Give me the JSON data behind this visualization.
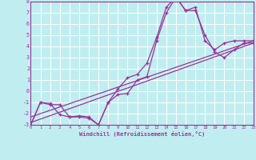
{
  "bg_color": "#c0eef0",
  "grid_color": "#ffffff",
  "line_color": "#993399",
  "xlabel": "Windchill (Refroidissement éolien,°C)",
  "xlim": [
    0,
    23
  ],
  "ylim": [
    -3,
    8
  ],
  "xticks": [
    0,
    1,
    2,
    3,
    4,
    5,
    6,
    7,
    8,
    9,
    10,
    11,
    12,
    13,
    14,
    15,
    16,
    17,
    18,
    19,
    20,
    21,
    22,
    23
  ],
  "yticks": [
    -3,
    -2,
    -1,
    0,
    1,
    2,
    3,
    4,
    5,
    6,
    7,
    8
  ],
  "hours": [
    0,
    1,
    2,
    3,
    4,
    5,
    6,
    7,
    8,
    9,
    10,
    11,
    12,
    13,
    14,
    15,
    16,
    17,
    18,
    19,
    20,
    21,
    22,
    23
  ],
  "line_a": [
    -3.0,
    -1.0,
    -1.1,
    -2.1,
    -2.3,
    -2.3,
    -2.4,
    -3.0,
    -1.0,
    -0.3,
    -0.2,
    1.0,
    1.3,
    4.5,
    7.0,
    8.4,
    7.2,
    7.2,
    5.0,
    3.5,
    3.0,
    3.7,
    4.3,
    4.3
  ],
  "line_b": [
    -3.0,
    -1.0,
    -1.2,
    -1.2,
    -2.3,
    -2.2,
    -2.3,
    -3.0,
    -1.0,
    0.2,
    1.2,
    1.5,
    2.5,
    4.8,
    7.5,
    8.4,
    7.2,
    7.5,
    4.5,
    3.7,
    4.3,
    4.5,
    4.5,
    4.5
  ],
  "trend1_x": [
    0,
    23
  ],
  "trend1_y": [
    -2.8,
    4.3
  ],
  "trend2_x": [
    0,
    23
  ],
  "trend2_y": [
    -2.3,
    4.5
  ]
}
